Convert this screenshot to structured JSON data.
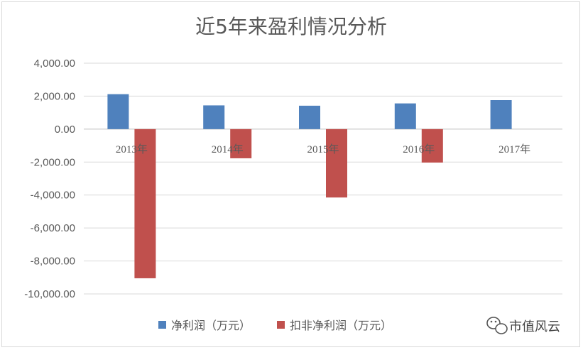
{
  "chart_data": {
    "type": "bar",
    "title": "近5年来盈利情况分析",
    "categories": [
      "2013年",
      "2014年",
      "2015年",
      "2016年",
      "2017年"
    ],
    "series": [
      {
        "name": "净利润（万元）",
        "color": "#4f81bd",
        "values": [
          2120,
          1440,
          1420,
          1560,
          1760
        ]
      },
      {
        "name": "扣非净利润（万元）",
        "color": "#c0504d",
        "values": [
          -9050,
          -1770,
          -4150,
          -2030,
          null
        ]
      }
    ],
    "ylim": [
      -10000,
      4000
    ],
    "yticks": [
      4000,
      2000,
      0,
      -2000,
      -4000,
      -6000,
      -8000,
      -10000
    ],
    "ytick_labels": [
      "4,000.00",
      "2,000.00",
      "0.00",
      "-2,000.00",
      "-4,000.00",
      "-6,000.00",
      "-8,000.00",
      "-10,000.00"
    ],
    "grid": true,
    "legend_position": "bottom"
  },
  "watermark": {
    "text": "市值风云",
    "icon": "wechat-icon"
  }
}
